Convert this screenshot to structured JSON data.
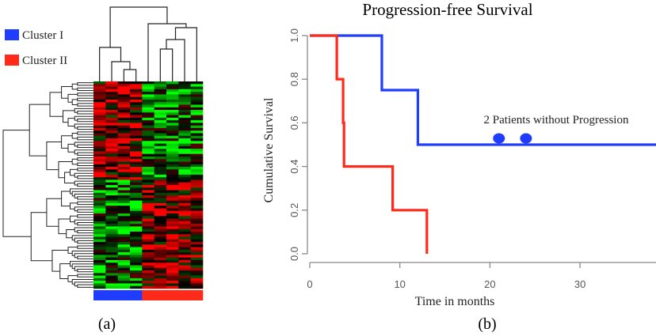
{
  "chart_data": [
    {
      "type": "heatmap",
      "panel_label": "(a)",
      "legend": [
        {
          "label": "Cluster I",
          "color": "#1f3cff"
        },
        {
          "label": "Cluster II",
          "color": "#ff2a1a"
        }
      ],
      "columns": 9,
      "column_clusters": [
        "Cluster I",
        "Cluster I",
        "Cluster I",
        "Cluster I",
        "Cluster II",
        "Cluster II",
        "Cluster II",
        "Cluster II",
        "Cluster II"
      ],
      "rows": 80,
      "color_scale": {
        "low": "#00ff00",
        "mid": "#000000",
        "high": "#ff0000"
      },
      "row_dendrogram": true,
      "column_dendrogram": true
    },
    {
      "type": "line",
      "subtype": "kaplan-meier step",
      "panel_label": "(b)",
      "title": "Progression-free Survival",
      "xlabel": "Time in months",
      "ylabel": "Cumulative Survival",
      "xlim": [
        0,
        38.5
      ],
      "ylim": [
        0,
        1
      ],
      "xticks": [
        "0",
        "10",
        "20",
        "30"
      ],
      "yticks": [
        "0.0",
        "0.2",
        "0.4",
        "0.6",
        "0.8",
        "1.0"
      ],
      "annotation": "2 Patients without Progression",
      "series": [
        {
          "name": "Cluster I",
          "color": "#1f3cff",
          "x": [
            0,
            8,
            12,
            38.5
          ],
          "y": [
            1.0,
            0.75,
            0.5,
            0.5
          ],
          "censored": [
            {
              "x": 21,
              "y": 0.5
            },
            {
              "x": 24,
              "y": 0.5
            }
          ]
        },
        {
          "name": "Cluster II",
          "color": "#ff2a1a",
          "x": [
            0,
            3,
            3.7,
            3.8,
            9.2,
            13
          ],
          "y": [
            1.0,
            0.8,
            0.6,
            0.4,
            0.2,
            0.0
          ]
        }
      ]
    }
  ]
}
